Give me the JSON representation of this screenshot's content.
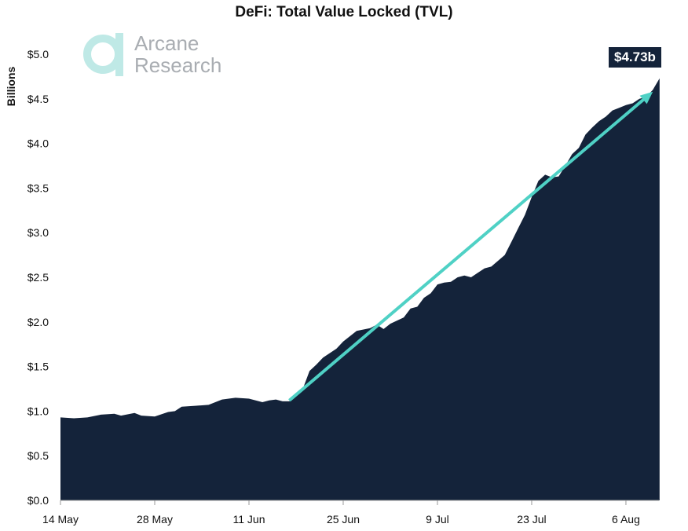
{
  "logo": {
    "line1": "Arcane",
    "line2": "Research",
    "color": "#bfe9e6"
  },
  "chart_data": {
    "type": "area",
    "title": "DeFi: Total Value Locked (TVL)",
    "ylabel": "Billions",
    "xlabel": "",
    "ylim": [
      0,
      5.0
    ],
    "yticks": [
      "$0.0",
      "$0.5",
      "$1.0",
      "$1.5",
      "$2.0",
      "$2.5",
      "$3.0",
      "$3.5",
      "$4.0",
      "$4.5",
      "$5.0"
    ],
    "xticks": [
      "14 May",
      "28 May",
      "11 Jun",
      "25 Jun",
      "9 Jul",
      "23 Jul",
      "6 Aug"
    ],
    "grid": false,
    "fill_color": "#14233a",
    "trend_color": "#4fd1c5",
    "last_value_label": "$4.73b",
    "series": [
      {
        "x": [
          "14 May",
          "16 May",
          "18 May",
          "20 May",
          "22 May",
          "23 May",
          "25 May",
          "26 May",
          "28 May",
          "30 May",
          "31 May",
          "1 Jun",
          "3 Jun",
          "5 Jun",
          "7 Jun",
          "9 Jun",
          "11 Jun",
          "13 Jun",
          "14 Jun",
          "15 Jun",
          "16 Jun",
          "17 Jun",
          "19 Jun",
          "20 Jun",
          "21 Jun",
          "22 Jun",
          "24 Jun",
          "25 Jun",
          "27 Jun",
          "29 Jun",
          "30 Jun",
          "1 Jul",
          "2 Jul",
          "4 Jul",
          "5 Jul",
          "6 Jul",
          "7 Jul",
          "8 Jul",
          "9 Jul",
          "10 Jul",
          "11 Jul",
          "12 Jul",
          "13 Jul",
          "14 Jul",
          "15 Jul",
          "16 Jul",
          "17 Jul",
          "19 Jul",
          "20 Jul",
          "21 Jul",
          "22 Jul",
          "23 Jul",
          "24 Jul",
          "25 Jul",
          "26 Jul",
          "27 Jul",
          "28 Jul",
          "29 Jul",
          "30 Jul",
          "31 Jul",
          "1 Aug",
          "2 Aug",
          "3 Aug",
          "4 Aug",
          "5 Aug",
          "6 Aug",
          "7 Aug",
          "8 Aug",
          "9 Aug",
          "10 Aug",
          "11 Aug"
        ],
        "y": [
          0.93,
          0.92,
          0.93,
          0.96,
          0.97,
          0.95,
          0.98,
          0.95,
          0.94,
          0.99,
          1.0,
          1.05,
          1.06,
          1.07,
          1.13,
          1.15,
          1.14,
          1.1,
          1.12,
          1.13,
          1.11,
          1.11,
          1.25,
          1.45,
          1.52,
          1.6,
          1.7,
          1.78,
          1.9,
          1.93,
          1.97,
          1.92,
          1.98,
          2.05,
          2.15,
          2.17,
          2.27,
          2.32,
          2.42,
          2.44,
          2.45,
          2.5,
          2.52,
          2.5,
          2.55,
          2.6,
          2.62,
          2.75,
          2.9,
          3.05,
          3.2,
          3.4,
          3.58,
          3.65,
          3.62,
          3.63,
          3.75,
          3.88,
          3.95,
          4.1,
          4.18,
          4.25,
          4.3,
          4.37,
          4.4,
          4.43,
          4.45,
          4.5,
          4.52,
          4.6,
          4.73
        ]
      }
    ],
    "trend_arrow": {
      "from": {
        "x": "17 Jun",
        "y": 1.12
      },
      "to": {
        "x": "10 Aug",
        "y": 4.58
      }
    }
  }
}
